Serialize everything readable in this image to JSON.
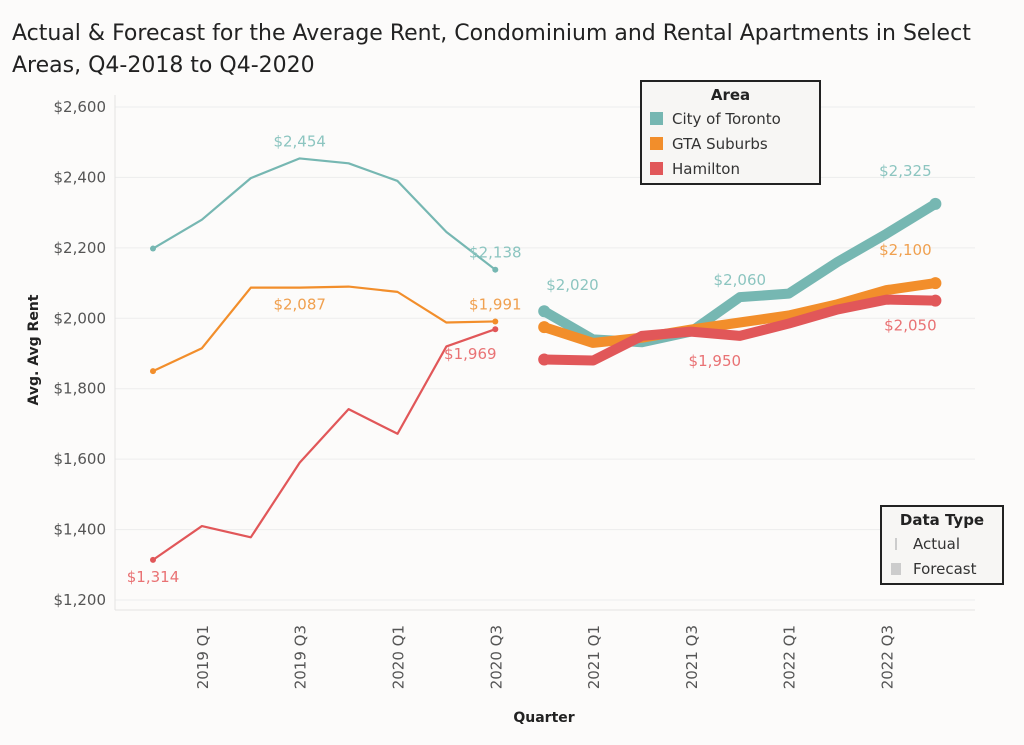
{
  "title": "Actual & Forecast for the Average Rent, Condominium and Rental Apartments in Select Areas, Q4-2018 to Q4-2020",
  "legend_area": {
    "title": "Area",
    "items": [
      {
        "label": "City of Toronto",
        "color": "#76b7b2"
      },
      {
        "label": "GTA Suburbs",
        "color": "#f28e2b"
      },
      {
        "label": "Hamilton",
        "color": "#e15759"
      }
    ]
  },
  "legend_datatype": {
    "title": "Data Type",
    "items": [
      {
        "label": "Actual",
        "mark": "thin"
      },
      {
        "label": "Forecast",
        "mark": "thick"
      }
    ]
  },
  "chart_data": {
    "type": "line",
    "xlabel": "Quarter",
    "ylabel": "Avg. Avg Rent",
    "ylim": [
      1200,
      2600
    ],
    "y_ticks": [
      1200,
      1400,
      1600,
      1800,
      2000,
      2200,
      2400,
      2600
    ],
    "y_tick_labels": [
      "$1,200",
      "$1,400",
      "$1,600",
      "$1,800",
      "$2,000",
      "$2,200",
      "$2,400",
      "$2,600"
    ],
    "x": [
      "2018 Q4",
      "2019 Q1",
      "2019 Q2",
      "2019 Q3",
      "2019 Q4",
      "2020 Q1",
      "2020 Q2",
      "2020 Q3",
      "2020 Q4",
      "2021 Q1",
      "2021 Q2",
      "2021 Q3",
      "2021 Q4",
      "2022 Q1",
      "2022 Q2",
      "2022 Q3",
      "2022 Q4"
    ],
    "x_tick_labels": [
      {
        "quarter": "2019 Q1",
        "label": "2019 Q1"
      },
      {
        "quarter": "2019 Q3",
        "label": "2019 Q3"
      },
      {
        "quarter": "2020 Q1",
        "label": "2020 Q1"
      },
      {
        "quarter": "2020 Q3",
        "label": "2020 Q3"
      },
      {
        "quarter": "2021 Q1",
        "label": "2021 Q1"
      },
      {
        "quarter": "2021 Q3",
        "label": "2021 Q3"
      },
      {
        "quarter": "2022 Q1",
        "label": "2022 Q1"
      },
      {
        "quarter": "2022 Q3",
        "label": "2022 Q3"
      }
    ],
    "grid": true,
    "legend_position": "top-right",
    "series": [
      {
        "name": "City of Toronto",
        "type": "Actual",
        "color": "#76b7b2",
        "color_label": "#8cc5c0",
        "values": [
          2198,
          2280,
          2398,
          2454,
          2440,
          2390,
          2245,
          2138,
          null,
          null,
          null,
          null,
          null,
          null,
          null,
          null,
          null
        ]
      },
      {
        "name": "GTA Suburbs",
        "type": "Actual",
        "color": "#f28e2b",
        "color_label": "#f0a04f",
        "values": [
          1850,
          1915,
          2087,
          2087,
          2090,
          2075,
          1988,
          1991,
          null,
          null,
          null,
          null,
          null,
          null,
          null,
          null,
          null
        ]
      },
      {
        "name": "Hamilton",
        "type": "Actual",
        "color": "#e15759",
        "color_label": "#e97274",
        "values": [
          1314,
          1410,
          1378,
          1590,
          1742,
          1672,
          1920,
          1969,
          null,
          null,
          null,
          null,
          null,
          null,
          null,
          null,
          null
        ]
      },
      {
        "name": "City of Toronto",
        "type": "Forecast",
        "color": "#76b7b2",
        "color_label": "#8cc5c0",
        "values": [
          null,
          null,
          null,
          null,
          null,
          null,
          null,
          null,
          2020,
          1940,
          1932,
          1962,
          2060,
          2070,
          2160,
          2240,
          2325
        ]
      },
      {
        "name": "GTA Suburbs",
        "type": "Forecast",
        "color": "#f28e2b",
        "color_label": "#f0a04f",
        "values": [
          null,
          null,
          null,
          null,
          null,
          null,
          null,
          null,
          1975,
          1930,
          1945,
          1968,
          1988,
          2008,
          2040,
          2080,
          2100
        ]
      },
      {
        "name": "Hamilton",
        "type": "Forecast",
        "color": "#e15759",
        "color_label": "#e97274",
        "values": [
          null,
          null,
          null,
          null,
          null,
          null,
          null,
          null,
          1883,
          1880,
          1950,
          1962,
          1950,
          1985,
          2025,
          2053,
          2050
        ]
      }
    ],
    "annotations": [
      {
        "text": "$2,454",
        "series": 0,
        "index": 3,
        "pos": "above"
      },
      {
        "text": "$2,138",
        "series": 0,
        "index": 7,
        "pos": "above"
      },
      {
        "text": "$2,087",
        "series": 1,
        "index": 3,
        "pos": "below"
      },
      {
        "text": "$1,991",
        "series": 1,
        "index": 7,
        "pos": "above"
      },
      {
        "text": "$1,314",
        "series": 2,
        "index": 0,
        "pos": "below"
      },
      {
        "text": "$1,969",
        "series": 2,
        "index": 7,
        "pos": "below-left"
      },
      {
        "text": "$2,020",
        "series": 3,
        "index": 8,
        "pos": "above-right"
      },
      {
        "text": "$2,060",
        "series": 3,
        "index": 12,
        "pos": "above"
      },
      {
        "text": "$2,325",
        "series": 3,
        "index": 16,
        "pos": "above-left"
      },
      {
        "text": "$2,100",
        "series": 4,
        "index": 16,
        "pos": "above-left"
      },
      {
        "text": "$1,950",
        "series": 5,
        "index": 12,
        "pos": "below-left"
      },
      {
        "text": "$2,050",
        "series": 5,
        "index": 16,
        "pos": "below-left"
      }
    ]
  }
}
